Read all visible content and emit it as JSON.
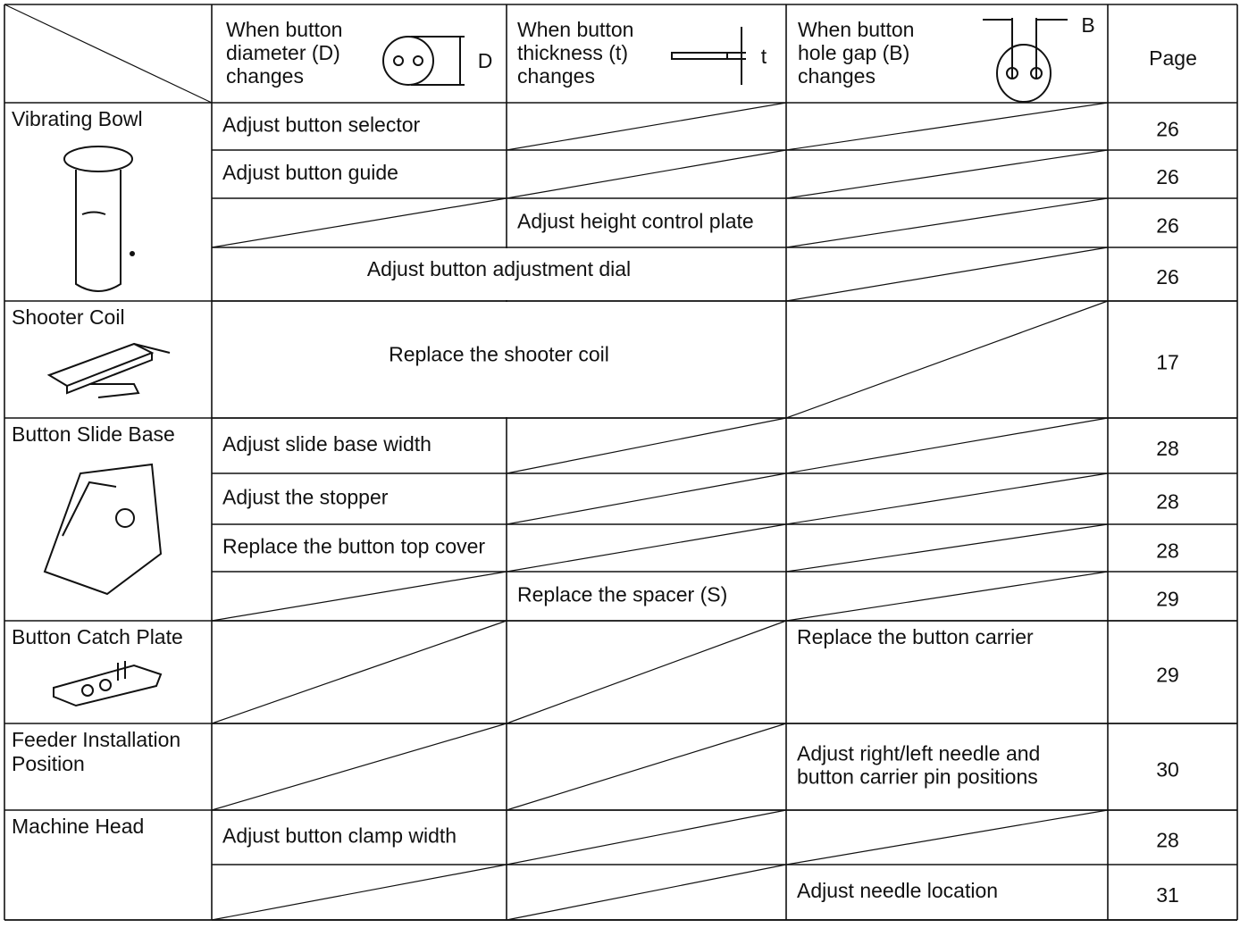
{
  "header": {
    "cols": [
      {
        "lines": [
          "When button",
          "diameter (D)",
          "changes"
        ],
        "symbol": "D"
      },
      {
        "lines": [
          "When button",
          "thickness (t)",
          "changes"
        ],
        "symbol": "t"
      },
      {
        "lines": [
          "When button",
          "hole gap (B)",
          "changes"
        ],
        "symbol": "B"
      }
    ],
    "page": "Page"
  },
  "groups": [
    {
      "label": [
        "Vibrating Bowl"
      ],
      "rows": [
        {
          "cells": [
            "Adjust button selector",
            null,
            null
          ],
          "page": "26"
        },
        {
          "cells": [
            "Adjust button guide",
            null,
            null
          ],
          "page": "26"
        },
        {
          "cells": [
            null,
            "Adjust height control plate",
            null
          ],
          "page": "26"
        },
        {
          "cells": [
            "Adjust button adjustment dial",
            null
          ],
          "page": "26"
        }
      ]
    },
    {
      "label": [
        "Shooter Coil"
      ],
      "rows": [
        {
          "cells": [
            "Replace the shooter coil",
            null
          ],
          "page": "17"
        }
      ]
    },
    {
      "label": [
        "Button Slide Base"
      ],
      "rows": [
        {
          "cells": [
            "Adjust slide base width",
            null,
            null
          ],
          "page": "28"
        },
        {
          "cells": [
            "Adjust the stopper",
            null,
            null
          ],
          "page": "28"
        },
        {
          "cells": [
            "Replace the button top cover",
            null,
            null
          ],
          "page": "28"
        },
        {
          "cells": [
            null,
            "Replace the spacer (S)",
            null
          ],
          "page": "29"
        }
      ]
    },
    {
      "label": [
        "Button Catch Plate"
      ],
      "rows": [
        {
          "cells": [
            null,
            null,
            [
              "Replace the button carrier"
            ]
          ],
          "page": "29"
        }
      ]
    },
    {
      "label": [
        "Feeder Installation",
        "Position"
      ],
      "rows": [
        {
          "cells": [
            null,
            null,
            [
              "Adjust right/left needle and",
              "button carrier pin positions"
            ]
          ],
          "page": "30"
        }
      ]
    },
    {
      "label": [
        "Machine Head"
      ],
      "rows": [
        {
          "cells": [
            "Adjust button clamp width",
            null,
            null
          ],
          "page": "28"
        },
        {
          "cells": [
            null,
            null,
            "Adjust needle location"
          ],
          "page": "31"
        }
      ]
    }
  ]
}
